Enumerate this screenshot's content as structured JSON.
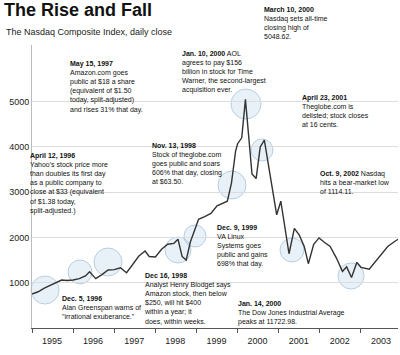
{
  "chart_data": {
    "type": "line",
    "title": "The Rise and Fall",
    "subtitle": "The Nasdaq Composite Index, daily close",
    "x": [
      1995.0,
      1995.15,
      1995.3,
      1995.45,
      1995.6,
      1995.72,
      1995.85,
      1996.0,
      1996.15,
      1996.3,
      1996.4,
      1996.55,
      1996.7,
      1996.85,
      1997.0,
      1997.15,
      1997.3,
      1997.45,
      1997.6,
      1997.75,
      1997.85,
      1998.0,
      1998.15,
      1998.3,
      1998.45,
      1998.55,
      1998.65,
      1998.75,
      1998.85,
      1998.95,
      1999.05,
      1999.2,
      1999.35,
      1999.5,
      1999.62,
      1999.75,
      1999.85,
      1999.95,
      2000.0,
      2000.1,
      2000.19,
      2000.28,
      2000.35,
      2000.45,
      2000.55,
      2000.65,
      2000.75,
      2000.85,
      2000.95,
      2001.05,
      2001.15,
      2001.25,
      2001.38,
      2001.5,
      2001.62,
      2001.72,
      2001.85,
      2001.98,
      2002.1,
      2002.25,
      2002.4,
      2002.55,
      2002.65,
      2002.77,
      2002.9,
      2003.0,
      2003.2,
      2003.35,
      2003.5,
      2003.65,
      2003.8,
      2003.9
    ],
    "values": [
      750,
      800,
      880,
      950,
      1010,
      1060,
      1050,
      1060,
      1090,
      1150,
      1240,
      1090,
      1180,
      1280,
      1290,
      1330,
      1220,
      1410,
      1590,
      1700,
      1580,
      1570,
      1740,
      1850,
      1870,
      1960,
      1580,
      1500,
      1900,
      2150,
      2400,
      2460,
      2530,
      2700,
      2750,
      2800,
      3200,
      3900,
      4070,
      4200,
      5048.62,
      4100,
      3400,
      3300,
      4000,
      4150,
      3600,
      3000,
      2500,
      2800,
      2200,
      1640,
      2200,
      2050,
      1800,
      1420,
      1850,
      1990,
      1900,
      1800,
      1550,
      1250,
      1350,
      1114.11,
      1450,
      1340,
      1300,
      1470,
      1650,
      1800,
      1900,
      1960
    ],
    "color": "#333333",
    "xlim": [
      1995,
      2003.9
    ],
    "xticks": [
      1995,
      1996,
      1997,
      1998,
      1999,
      2000,
      2001,
      2002,
      2003
    ],
    "ylim": [
      0,
      6250
    ],
    "yticks": [
      1000,
      2000,
      3000,
      4000,
      5000
    ],
    "grid": true,
    "annotations": [
      {
        "text": "April 12, 1996\nYahoo's stock price more\nthan doubles its first day\nas a public company to\nclose at $33 (equivalent\nof $1.38 today,\nsplit-adjusted.)"
      },
      {
        "text": "Dec. 5, 1996\nAlan Greenspan warns of\n\"irrational exuberance.\""
      },
      {
        "text": "May 15, 1997\nAmazon.com goes\npublic at $18 a share\n(equivalent of $1.50\ntoday, split-adjusted)\nand rises 31% that day."
      },
      {
        "text": "Nov. 13, 1998\nStock of theglobe.com\ngoes public and soars\n606% that day, closing\nat $63.50."
      },
      {
        "text": "Dec 16, 1998\nAnalyst Henry Blodget says\nAmazon stock, then below\n$250, will hit $400\nwithin a year; it\ndoes, within weeks."
      },
      {
        "text": "Dec. 9, 1999\nVA Linux\nSystems goes\npublic and gains\n698% that day."
      },
      {
        "text": "Jan. 10, 2000 AOL\nagrees to pay $156\nbillion in stock for Time\nWarner, the second-largest\nacquisition ever."
      },
      {
        "text": "Jan. 14, 2000\nThe Dow Jones Industrial Average\npeaks at 11722.98."
      },
      {
        "text": "March 10, 2000\nNasdaq sets all-time\nclosing high of\n5048.62."
      },
      {
        "text": "April 23, 2001\nTheglobe.com is\ndelisted; stock closes\nat 16 cents."
      },
      {
        "text": "Oct. 9, 2002 Nasdaq\nhits a bear-market low\nof 1114.11."
      }
    ]
  }
}
